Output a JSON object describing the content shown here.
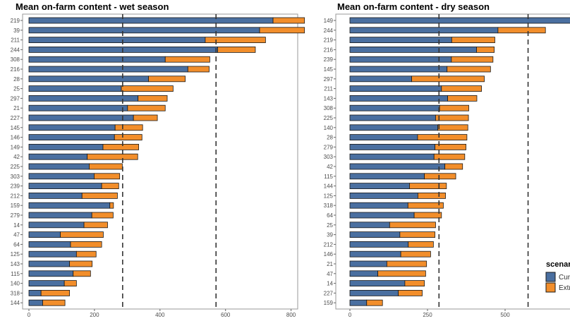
{
  "chart_data": [
    {
      "type": "bar",
      "orientation": "horizontal",
      "stacked": true,
      "title": "Mean on-farm content - wet season",
      "xlabel": "",
      "ylabel": "",
      "xlim": [
        0,
        820
      ],
      "xticks": [
        0,
        200,
        400,
        600,
        800
      ],
      "reference_lines": [
        286,
        571
      ],
      "grid": false,
      "categories": [
        "219",
        "39",
        "211",
        "244",
        "308",
        "216",
        "28",
        "25",
        "297",
        "21",
        "227",
        "145",
        "146",
        "149",
        "42",
        "225",
        "303",
        "239",
        "212",
        "159",
        "279",
        "14",
        "47",
        "64",
        "125",
        "143",
        "115",
        "140",
        "318",
        "144"
      ],
      "series": [
        {
          "name": "Current",
          "values": [
            745,
            704,
            538,
            576,
            416,
            485,
            365,
            282,
            333,
            301,
            319,
            263,
            261,
            226,
            178,
            184,
            199,
            222,
            162,
            247,
            192,
            168,
            96,
            127,
            145,
            124,
            135,
            108,
            37,
            42
          ]
        },
        {
          "name": "Extreme",
          "values": [
            96,
            137,
            184,
            115,
            136,
            65,
            112,
            158,
            89,
            115,
            73,
            84,
            84,
            109,
            154,
            101,
            78,
            52,
            108,
            11,
            65,
            72,
            131,
            95,
            60,
            69,
            53,
            37,
            87,
            68
          ]
        }
      ]
    },
    {
      "type": "bar",
      "orientation": "horizontal",
      "stacked": true,
      "title": "Mean on-farm content - dry season",
      "xlabel": "",
      "ylabel": "",
      "xlim": [
        0,
        760
      ],
      "xticks": [
        0,
        250,
        500
      ],
      "reference_lines": [
        287,
        574
      ],
      "grid": false,
      "categories": [
        "149",
        "244",
        "219",
        "216",
        "239",
        "145",
        "297",
        "211",
        "143",
        "308",
        "225",
        "140",
        "28",
        "279",
        "303",
        "42",
        "115",
        "144",
        "125",
        "318",
        "64",
        "25",
        "39",
        "212",
        "146",
        "21",
        "47",
        "14",
        "227",
        "159"
      ],
      "series": [
        {
          "name": "Current",
          "values": [
            740,
            477,
            328,
            408,
            327,
            313,
            199,
            295,
            315,
            289,
            276,
            283,
            218,
            274,
            271,
            306,
            240,
            192,
            219,
            187,
            207,
            128,
            161,
            188,
            164,
            119,
            90,
            177,
            156,
            54
          ]
        },
        {
          "name": "Extreme",
          "values": [
            20,
            153,
            139,
            57,
            134,
            140,
            234,
            129,
            94,
            94,
            106,
            97,
            159,
            100,
            99,
            57,
            101,
            119,
            89,
            114,
            88,
            148,
            113,
            81,
            96,
            128,
            154,
            63,
            77,
            51
          ]
        }
      ]
    }
  ],
  "legend": {
    "title": "scenario",
    "items": [
      "Current",
      "Extreme"
    ],
    "position": "right"
  },
  "colors": {
    "Current": "#4a6fa0",
    "Extreme": "#f28e2b",
    "outline": "#1a1a1a"
  }
}
